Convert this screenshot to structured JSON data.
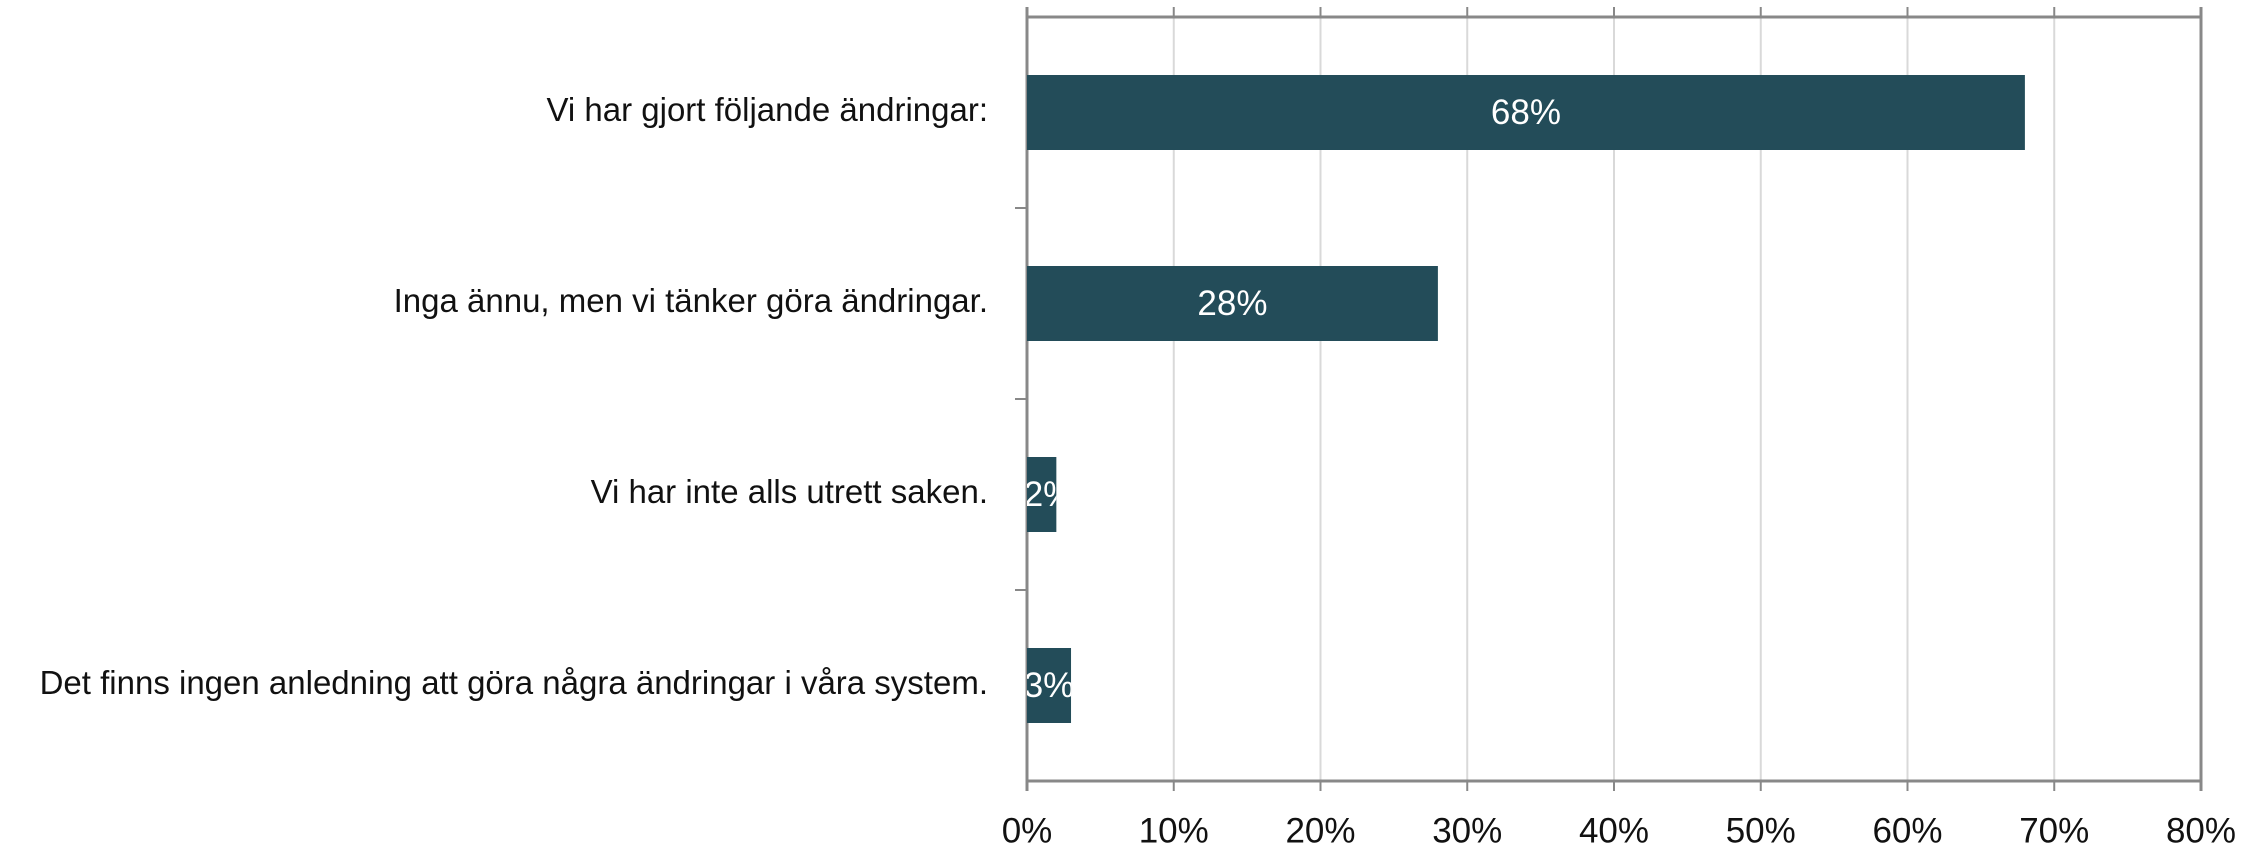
{
  "chart_data": {
    "type": "bar",
    "orientation": "horizontal",
    "categories": [
      "Vi har gjort följande ändringar:",
      "Inga ännu, men vi tänker göra ändringar.",
      "Vi har inte alls utrett saken.",
      "Det finns ingen anledning att göra några ändringar i våra system."
    ],
    "values": [
      68,
      28,
      2,
      3
    ],
    "value_labels": [
      "68%",
      "28%",
      "2%",
      "3%"
    ],
    "color": "#234c59",
    "xlim": [
      0,
      80
    ],
    "xticks": [
      {
        "value": 0,
        "label": "0%"
      },
      {
        "value": 10,
        "label": "10%"
      },
      {
        "value": 20,
        "label": "20%"
      },
      {
        "value": 30,
        "label": "30%"
      },
      {
        "value": 40,
        "label": "40%"
      },
      {
        "value": 50,
        "label": "50%"
      },
      {
        "value": 60,
        "label": "60%"
      },
      {
        "value": 70,
        "label": "70%"
      },
      {
        "value": 80,
        "label": "80%"
      }
    ],
    "grid": true
  }
}
